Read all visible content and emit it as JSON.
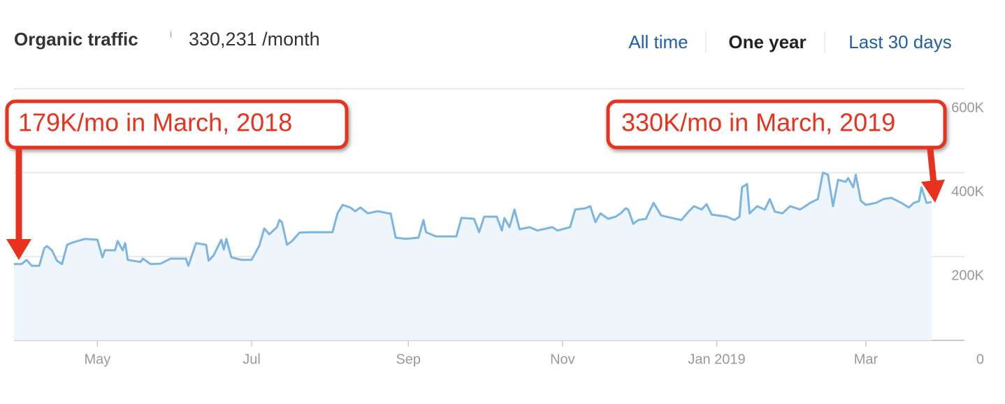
{
  "header": {
    "title": "Organic traffic",
    "info": "i",
    "total": "330,231 /month",
    "tabs": [
      "All time",
      "One year",
      "Last 30 days"
    ],
    "active_tab": 1
  },
  "chart_data": {
    "type": "area",
    "annotations": [
      "179K/mo in March, 2018",
      "330K/mo in March, 2019"
    ],
    "x": [
      0,
      3,
      5,
      7,
      10,
      12,
      13,
      15,
      17,
      19,
      21,
      23,
      28,
      33,
      35,
      36,
      40,
      41,
      43,
      44,
      45,
      50,
      51,
      54,
      58,
      62,
      68,
      69,
      72,
      76,
      77,
      79,
      82,
      83,
      84,
      86,
      90,
      94,
      97,
      99,
      101,
      104,
      105,
      106,
      108,
      110,
      113,
      117,
      126,
      128,
      130,
      133,
      135,
      137,
      140,
      144,
      148,
      149,
      151,
      155,
      160,
      162,
      163,
      167,
      175,
      177,
      182,
      184,
      186,
      191,
      193,
      194,
      196,
      198,
      200,
      204,
      207,
      213,
      215,
      220,
      222,
      226,
      228,
      230,
      232,
      235,
      238,
      240,
      242,
      243,
      245,
      247,
      250,
      253,
      256,
      258,
      264,
      267,
      269,
      272,
      274,
      276,
      282,
      285,
      287,
      288,
      290,
      291,
      294,
      297,
      299,
      301,
      304,
      307,
      311,
      315,
      318,
      320,
      322,
      324,
      326,
      329,
      330,
      332,
      333,
      335,
      337,
      341,
      344,
      347,
      351,
      354,
      356,
      358,
      359,
      361,
      363
    ],
    "series": [
      {
        "name": "Organic traffic",
        "color": "#7db5e0",
        "fill": "#eef6fb",
        "values": [
          182,
          182,
          192,
          178,
          178,
          220,
          225,
          215,
          190,
          182,
          228,
          233,
          242,
          240,
          198,
          215,
          215,
          237,
          215,
          232,
          192,
          187,
          195,
          182,
          183,
          195,
          195,
          178,
          232,
          228,
          190,
          203,
          240,
          217,
          242,
          198,
          192,
          192,
          225,
          267,
          253,
          270,
          287,
          282,
          228,
          237,
          257,
          258,
          258,
          303,
          323,
          317,
          308,
          317,
          303,
          308,
          303,
          303,
          245,
          242,
          245,
          287,
          258,
          248,
          248,
          292,
          290,
          258,
          295,
          295,
          262,
          292,
          270,
          312,
          265,
          270,
          262,
          270,
          262,
          270,
          312,
          315,
          320,
          282,
          303,
          290,
          295,
          303,
          315,
          312,
          278,
          287,
          290,
          328,
          298,
          295,
          287,
          308,
          320,
          312,
          325,
          300,
          295,
          287,
          295,
          365,
          373,
          303,
          320,
          312,
          337,
          307,
          303,
          320,
          312,
          328,
          337,
          400,
          395,
          320,
          383,
          378,
          387,
          365,
          395,
          333,
          323,
          328,
          337,
          340,
          328,
          317,
          328,
          332,
          365,
          328,
          330
        ]
      }
    ],
    "xlim": [
      0,
      376
    ],
    "xticks": [
      {
        "value": 33,
        "label": "May"
      },
      {
        "value": 94,
        "label": "Jul"
      },
      {
        "value": 156,
        "label": "Sep"
      },
      {
        "value": 217,
        "label": "Nov"
      },
      {
        "value": 278,
        "label": "Jan 2019"
      },
      {
        "value": 337,
        "label": "Mar"
      }
    ],
    "ylim": [
      0,
      600
    ],
    "yticks": [
      0,
      {
        "value": 200,
        "label": "200K"
      },
      {
        "value": 400,
        "label": "400K"
      },
      {
        "value": 600,
        "label": "600K"
      }
    ],
    "grid": true
  }
}
